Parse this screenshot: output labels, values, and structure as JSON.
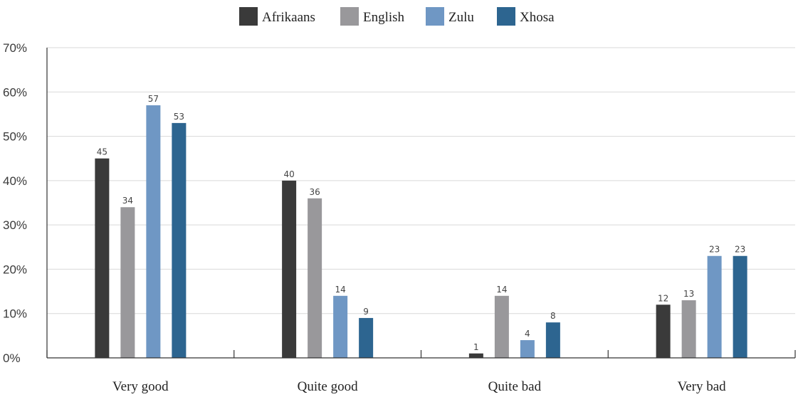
{
  "chart_data": {
    "type": "bar",
    "categories": [
      "Very good",
      "Quite good",
      "Quite bad",
      "Very bad"
    ],
    "series": [
      {
        "name": "Afrikaans",
        "color": "#3a3a3a",
        "values": [
          45,
          40,
          1,
          12
        ]
      },
      {
        "name": "English",
        "color": "#99989b",
        "values": [
          34,
          36,
          14,
          13
        ]
      },
      {
        "name": "Zulu",
        "color": "#6f97c4",
        "values": [
          57,
          14,
          4,
          23
        ]
      },
      {
        "name": "Xhosa",
        "color": "#2d6590",
        "values": [
          53,
          9,
          8,
          23
        ]
      }
    ],
    "yticks": [
      "0%",
      "10%",
      "20%",
      "30%",
      "40%",
      "50%",
      "60%",
      "70%"
    ],
    "ylim": [
      0,
      70
    ],
    "grid": true,
    "legend_position": "top-center",
    "data_labels": true
  }
}
